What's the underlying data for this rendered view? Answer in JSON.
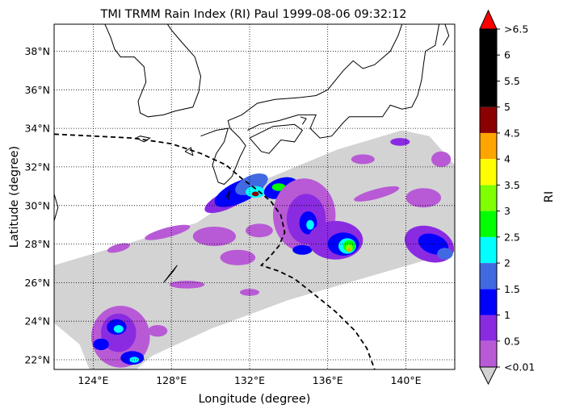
{
  "chart_data": {
    "type": "heatmap",
    "title": "TMI TRMM Rain Index (RI) Paul 1999-08-06 09:32:12",
    "xlabel": "Longitude (degree)",
    "ylabel": "Latitude (degree)",
    "xlim": [
      122,
      142.5
    ],
    "ylim": [
      21.5,
      39.4
    ],
    "x_ticks": [
      {
        "value": 124,
        "label": "124°E"
      },
      {
        "value": 128,
        "label": "128°E"
      },
      {
        "value": 132,
        "label": "132°E"
      },
      {
        "value": 136,
        "label": "136°E"
      },
      {
        "value": 140,
        "label": "140°E"
      }
    ],
    "y_ticks": [
      {
        "value": 22,
        "label": "22°N"
      },
      {
        "value": 24,
        "label": "24°N"
      },
      {
        "value": 26,
        "label": "26°N"
      },
      {
        "value": 28,
        "label": "28°N"
      },
      {
        "value": 30,
        "label": "30°N"
      },
      {
        "value": 32,
        "label": "32°N"
      },
      {
        "value": 34,
        "label": "34°N"
      },
      {
        "value": 36,
        "label": "36°N"
      },
      {
        "value": 38,
        "label": "38°N"
      }
    ],
    "grid": true,
    "colorbar": {
      "label": "RI",
      "under_color": "#d3d3d3",
      "over_color": "#ff0000",
      "tick_labels": [
        "<0.01",
        "0.5",
        "1",
        "1.5",
        "2",
        "2.5",
        "3",
        "3.5",
        "4",
        "4.5",
        "5",
        "5.5",
        "6",
        ">6.5"
      ],
      "bins": [
        {
          "lo": 0.01,
          "hi": 0.5,
          "color": "#b85ad6"
        },
        {
          "lo": 0.5,
          "hi": 1.0,
          "color": "#8a2be2"
        },
        {
          "lo": 1.0,
          "hi": 1.5,
          "color": "#0000ff"
        },
        {
          "lo": 1.5,
          "hi": 2.0,
          "color": "#4169e1"
        },
        {
          "lo": 2.0,
          "hi": 2.5,
          "color": "#00ffff"
        },
        {
          "lo": 2.5,
          "hi": 3.0,
          "color": "#00ff00"
        },
        {
          "lo": 3.0,
          "hi": 3.5,
          "color": "#7fff00"
        },
        {
          "lo": 3.5,
          "hi": 4.0,
          "color": "#ffff00"
        },
        {
          "lo": 4.0,
          "hi": 4.5,
          "color": "#ffa500"
        },
        {
          "lo": 4.5,
          "hi": 5.0,
          "color": "#8b0000"
        },
        {
          "lo": 5.0,
          "hi": 6.5,
          "color": "#000000"
        }
      ]
    },
    "swath": {
      "color": "#d3d3d3",
      "polygon": [
        [
          122,
          26.9
        ],
        [
          129.3,
          29.1
        ],
        [
          132.2,
          31.1
        ],
        [
          136.5,
          32.9
        ],
        [
          139.8,
          33.9
        ],
        [
          141.2,
          33.6
        ],
        [
          142.5,
          32.1
        ],
        [
          142.5,
          27.6
        ],
        [
          134,
          25.1
        ],
        [
          130,
          23.6
        ],
        [
          127,
          22.2
        ],
        [
          126.2,
          21.5
        ],
        [
          123.8,
          21.5
        ],
        [
          123.3,
          22.8
        ],
        [
          122,
          23.9
        ]
      ]
    },
    "rain_features": [
      {
        "lon": 130.9,
        "lat": 30.3,
        "rlon": 1.3,
        "rlat": 0.45,
        "rot": -25,
        "ri": 0.7
      },
      {
        "lon": 131.5,
        "lat": 30.7,
        "rlon": 1.4,
        "rlat": 0.55,
        "rot": -25,
        "ri": 1.2
      },
      {
        "lon": 132.1,
        "lat": 31.1,
        "rlon": 0.9,
        "rlat": 0.45,
        "rot": -25,
        "ri": 1.7
      },
      {
        "lon": 132.3,
        "lat": 30.7,
        "rlon": 0.5,
        "rlat": 0.3,
        "rot": 0,
        "ri": 2.2
      },
      {
        "lon": 132.3,
        "lat": 30.6,
        "rlon": 0.18,
        "rlat": 0.12,
        "rot": 0,
        "ri": 4.8
      },
      {
        "lon": 133.6,
        "lat": 30.9,
        "rlon": 0.9,
        "rlat": 0.5,
        "rot": -20,
        "ri": 1.2
      },
      {
        "lon": 133.5,
        "lat": 30.95,
        "rlon": 0.35,
        "rlat": 0.2,
        "rot": 0,
        "ri": 2.7
      },
      {
        "lon": 134.8,
        "lat": 29.5,
        "rlon": 1.6,
        "rlat": 1.9,
        "rot": 0,
        "ri": 0.3
      },
      {
        "lon": 134.9,
        "lat": 29.3,
        "rlon": 1.0,
        "rlat": 1.3,
        "rot": 0,
        "ri": 0.8
      },
      {
        "lon": 135.0,
        "lat": 29.1,
        "rlon": 0.45,
        "rlat": 0.6,
        "rot": 0,
        "ri": 1.2
      },
      {
        "lon": 135.1,
        "lat": 29.0,
        "rlon": 0.2,
        "rlat": 0.25,
        "rot": 0,
        "ri": 2.2
      },
      {
        "lon": 134.7,
        "lat": 27.7,
        "rlon": 0.5,
        "rlat": 0.25,
        "rot": 0,
        "ri": 1.2
      },
      {
        "lon": 136.4,
        "lat": 28.2,
        "rlon": 1.4,
        "rlat": 1.0,
        "rot": 0,
        "ri": 0.7
      },
      {
        "lon": 136.8,
        "lat": 28.0,
        "rlon": 0.8,
        "rlat": 0.6,
        "rot": 0,
        "ri": 1.2
      },
      {
        "lon": 137.0,
        "lat": 27.9,
        "rlon": 0.45,
        "rlat": 0.4,
        "rot": 0,
        "ri": 2.2
      },
      {
        "lon": 137.1,
        "lat": 27.9,
        "rlon": 0.3,
        "rlat": 0.3,
        "rot": 0,
        "ri": 2.8
      },
      {
        "lon": 137.1,
        "lat": 27.8,
        "rlon": 0.18,
        "rlat": 0.2,
        "rot": 0,
        "ri": 3.2
      },
      {
        "lon": 137.1,
        "lat": 27.7,
        "rlon": 0.08,
        "rlat": 0.1,
        "rot": 0,
        "ri": 4.2
      },
      {
        "lon": 141.2,
        "lat": 28.0,
        "rlon": 1.3,
        "rlat": 0.9,
        "rot": 20,
        "ri": 0.7
      },
      {
        "lon": 141.4,
        "lat": 28.0,
        "rlon": 0.8,
        "rlat": 0.5,
        "rot": 20,
        "ri": 1.2
      },
      {
        "lon": 142.0,
        "lat": 27.5,
        "rlon": 0.4,
        "rlat": 0.3,
        "rot": 0,
        "ri": 1.7
      },
      {
        "lon": 140.9,
        "lat": 30.4,
        "rlon": 0.9,
        "rlat": 0.5,
        "rot": 0,
        "ri": 0.3
      },
      {
        "lon": 141.8,
        "lat": 32.4,
        "rlon": 0.5,
        "rlat": 0.4,
        "rot": 0,
        "ri": 0.3
      },
      {
        "lon": 138.5,
        "lat": 30.6,
        "rlon": 1.2,
        "rlat": 0.25,
        "rot": -15,
        "ri": 0.3
      },
      {
        "lon": 137.8,
        "lat": 32.4,
        "rlon": 0.6,
        "rlat": 0.25,
        "rot": 0,
        "ri": 0.3
      },
      {
        "lon": 139.7,
        "lat": 33.3,
        "rlon": 0.5,
        "rlat": 0.2,
        "rot": 0,
        "ri": 0.7
      },
      {
        "lon": 127.8,
        "lat": 28.6,
        "rlon": 1.2,
        "rlat": 0.25,
        "rot": -15,
        "ri": 0.3
      },
      {
        "lon": 130.2,
        "lat": 28.4,
        "rlon": 1.1,
        "rlat": 0.5,
        "rot": 0,
        "ri": 0.3
      },
      {
        "lon": 131.4,
        "lat": 27.3,
        "rlon": 0.9,
        "rlat": 0.4,
        "rot": 0,
        "ri": 0.3
      },
      {
        "lon": 132.5,
        "lat": 28.7,
        "rlon": 0.7,
        "rlat": 0.35,
        "rot": 0,
        "ri": 0.3
      },
      {
        "lon": 125.3,
        "lat": 27.8,
        "rlon": 0.6,
        "rlat": 0.2,
        "rot": -15,
        "ri": 0.3
      },
      {
        "lon": 128.8,
        "lat": 25.9,
        "rlon": 0.9,
        "rlat": 0.2,
        "rot": 0,
        "ri": 0.3
      },
      {
        "lon": 132.0,
        "lat": 25.5,
        "rlon": 0.5,
        "rlat": 0.18,
        "rot": 0,
        "ri": 0.3
      },
      {
        "lon": 127.3,
        "lat": 23.5,
        "rlon": 0.5,
        "rlat": 0.3,
        "rot": 0,
        "ri": 0.3
      },
      {
        "lon": 125.4,
        "lat": 23.2,
        "rlon": 1.5,
        "rlat": 1.6,
        "rot": 0,
        "ri": 0.3
      },
      {
        "lon": 125.3,
        "lat": 23.4,
        "rlon": 0.9,
        "rlat": 1.0,
        "rot": 0,
        "ri": 0.8
      },
      {
        "lon": 125.2,
        "lat": 23.7,
        "rlon": 0.5,
        "rlat": 0.4,
        "rot": 0,
        "ri": 1.2
      },
      {
        "lon": 125.3,
        "lat": 23.6,
        "rlon": 0.25,
        "rlat": 0.2,
        "rot": 0,
        "ri": 2.2
      },
      {
        "lon": 124.4,
        "lat": 22.8,
        "rlon": 0.4,
        "rlat": 0.3,
        "rot": 0,
        "ri": 1.2
      },
      {
        "lon": 126.0,
        "lat": 22.1,
        "rlon": 0.6,
        "rlat": 0.35,
        "rot": 0,
        "ri": 1.2
      },
      {
        "lon": 126.1,
        "lat": 22.0,
        "rlon": 0.25,
        "rlat": 0.15,
        "rot": 0,
        "ri": 2.2
      }
    ],
    "track": {
      "style": "dashed",
      "color": "#000000",
      "points": [
        [
          122,
          33.7
        ],
        [
          124,
          33.6
        ],
        [
          126,
          33.5
        ],
        [
          128,
          33.2
        ],
        [
          129.5,
          32.7
        ],
        [
          130.8,
          32.1
        ],
        [
          131.6,
          31.4
        ],
        [
          132.4,
          30.8
        ],
        [
          133.1,
          30.2
        ],
        [
          133.6,
          29.5
        ],
        [
          133.8,
          28.6
        ],
        [
          133.5,
          27.9
        ],
        [
          133.0,
          27.3
        ],
        [
          132.6,
          26.9
        ],
        [
          133.5,
          26.6
        ],
        [
          134.3,
          26.2
        ],
        [
          135.3,
          25.4
        ],
        [
          136.4,
          24.5
        ],
        [
          137.4,
          23.5
        ],
        [
          138.0,
          22.6
        ],
        [
          138.4,
          21.5
        ]
      ]
    },
    "coastlines": [
      [
        [
          124.6,
          39.4
        ],
        [
          124.9,
          38.7
        ],
        [
          125.1,
          38.1
        ],
        [
          125.4,
          37.7
        ],
        [
          126.1,
          37.7
        ],
        [
          126.6,
          37.2
        ],
        [
          126.7,
          36.4
        ],
        [
          126.3,
          35.4
        ],
        [
          126.4,
          34.8
        ],
        [
          126.8,
          34.6
        ],
        [
          127.6,
          34.7
        ],
        [
          128.2,
          34.9
        ],
        [
          129.1,
          35.1
        ],
        [
          129.4,
          35.9
        ],
        [
          129.5,
          36.7
        ],
        [
          129.2,
          37.7
        ],
        [
          128.5,
          38.5
        ],
        [
          128.0,
          39.1
        ],
        [
          127.8,
          39.4
        ]
      ],
      [
        [
          126.2,
          33.5
        ],
        [
          126.6,
          33.3
        ],
        [
          126.9,
          33.5
        ],
        [
          126.4,
          33.6
        ],
        [
          126.2,
          33.5
        ]
      ],
      [
        [
          129.5,
          33.6
        ],
        [
          130.3,
          33.9
        ],
        [
          130.9,
          34.0
        ],
        [
          130.7,
          33.3
        ],
        [
          130.3,
          32.7
        ],
        [
          130.1,
          32.1
        ],
        [
          130.4,
          31.2
        ],
        [
          130.7,
          31.1
        ],
        [
          131.1,
          31.5
        ],
        [
          131.5,
          32.5
        ],
        [
          131.8,
          33.1
        ],
        [
          131.5,
          33.5
        ],
        [
          131.0,
          34.0
        ],
        [
          130.9,
          34.4
        ],
        [
          131.6,
          34.7
        ],
        [
          132.4,
          35.3
        ],
        [
          133.3,
          35.5
        ],
        [
          134.6,
          35.6
        ],
        [
          135.4,
          35.7
        ],
        [
          136.0,
          36.0
        ],
        [
          136.8,
          37.0
        ],
        [
          137.3,
          37.5
        ],
        [
          137.8,
          37.1
        ],
        [
          138.4,
          37.3
        ],
        [
          139.2,
          38.0
        ],
        [
          139.6,
          38.8
        ],
        [
          139.8,
          39.4
        ]
      ],
      [
        [
          141.7,
          39.4
        ],
        [
          141.5,
          38.3
        ],
        [
          141.0,
          38.0
        ],
        [
          140.9,
          37.3
        ],
        [
          140.8,
          36.5
        ],
        [
          140.6,
          35.7
        ],
        [
          140.3,
          35.1
        ],
        [
          139.8,
          35.0
        ],
        [
          139.2,
          35.2
        ],
        [
          138.8,
          34.6
        ],
        [
          138.2,
          34.6
        ],
        [
          137.1,
          34.6
        ],
        [
          136.8,
          34.3
        ],
        [
          136.2,
          33.6
        ],
        [
          135.6,
          33.5
        ],
        [
          135.1,
          34.0
        ],
        [
          135.4,
          34.7
        ],
        [
          134.5,
          34.7
        ],
        [
          133.5,
          34.4
        ],
        [
          132.5,
          34.2
        ],
        [
          131.9,
          33.9
        ]
      ],
      [
        [
          132.0,
          33.5
        ],
        [
          132.6,
          32.8
        ],
        [
          133.0,
          32.7
        ],
        [
          133.6,
          33.4
        ],
        [
          134.3,
          33.3
        ],
        [
          134.7,
          33.9
        ],
        [
          134.3,
          34.2
        ],
        [
          133.2,
          34.1
        ],
        [
          132.0,
          33.5
        ]
      ],
      [
        [
          128.7,
          32.8
        ],
        [
          129.1,
          32.6
        ],
        [
          129.0,
          33.0
        ],
        [
          128.7,
          32.8
        ]
      ],
      [
        [
          122.0,
          24.3
        ],
        [
          122.0,
          25.0
        ]
      ],
      [
        [
          122.0,
          30.6
        ],
        [
          122.2,
          29.9
        ],
        [
          122.0,
          29.2
        ]
      ],
      [
        [
          127.6,
          26.0
        ],
        [
          128.1,
          26.6
        ],
        [
          128.3,
          26.9
        ],
        [
          127.9,
          26.4
        ],
        [
          127.6,
          26.0
        ]
      ],
      [
        [
          130.9,
          30.3
        ],
        [
          131.0,
          30.8
        ],
        [
          130.8,
          30.4
        ]
      ],
      [
        [
          134.7,
          34.2
        ],
        [
          134.9,
          34.5
        ],
        [
          134.6,
          34.6
        ]
      ],
      [
        [
          142.0,
          39.4
        ],
        [
          142.2,
          38.8
        ],
        [
          141.9,
          38.3
        ]
      ]
    ]
  }
}
